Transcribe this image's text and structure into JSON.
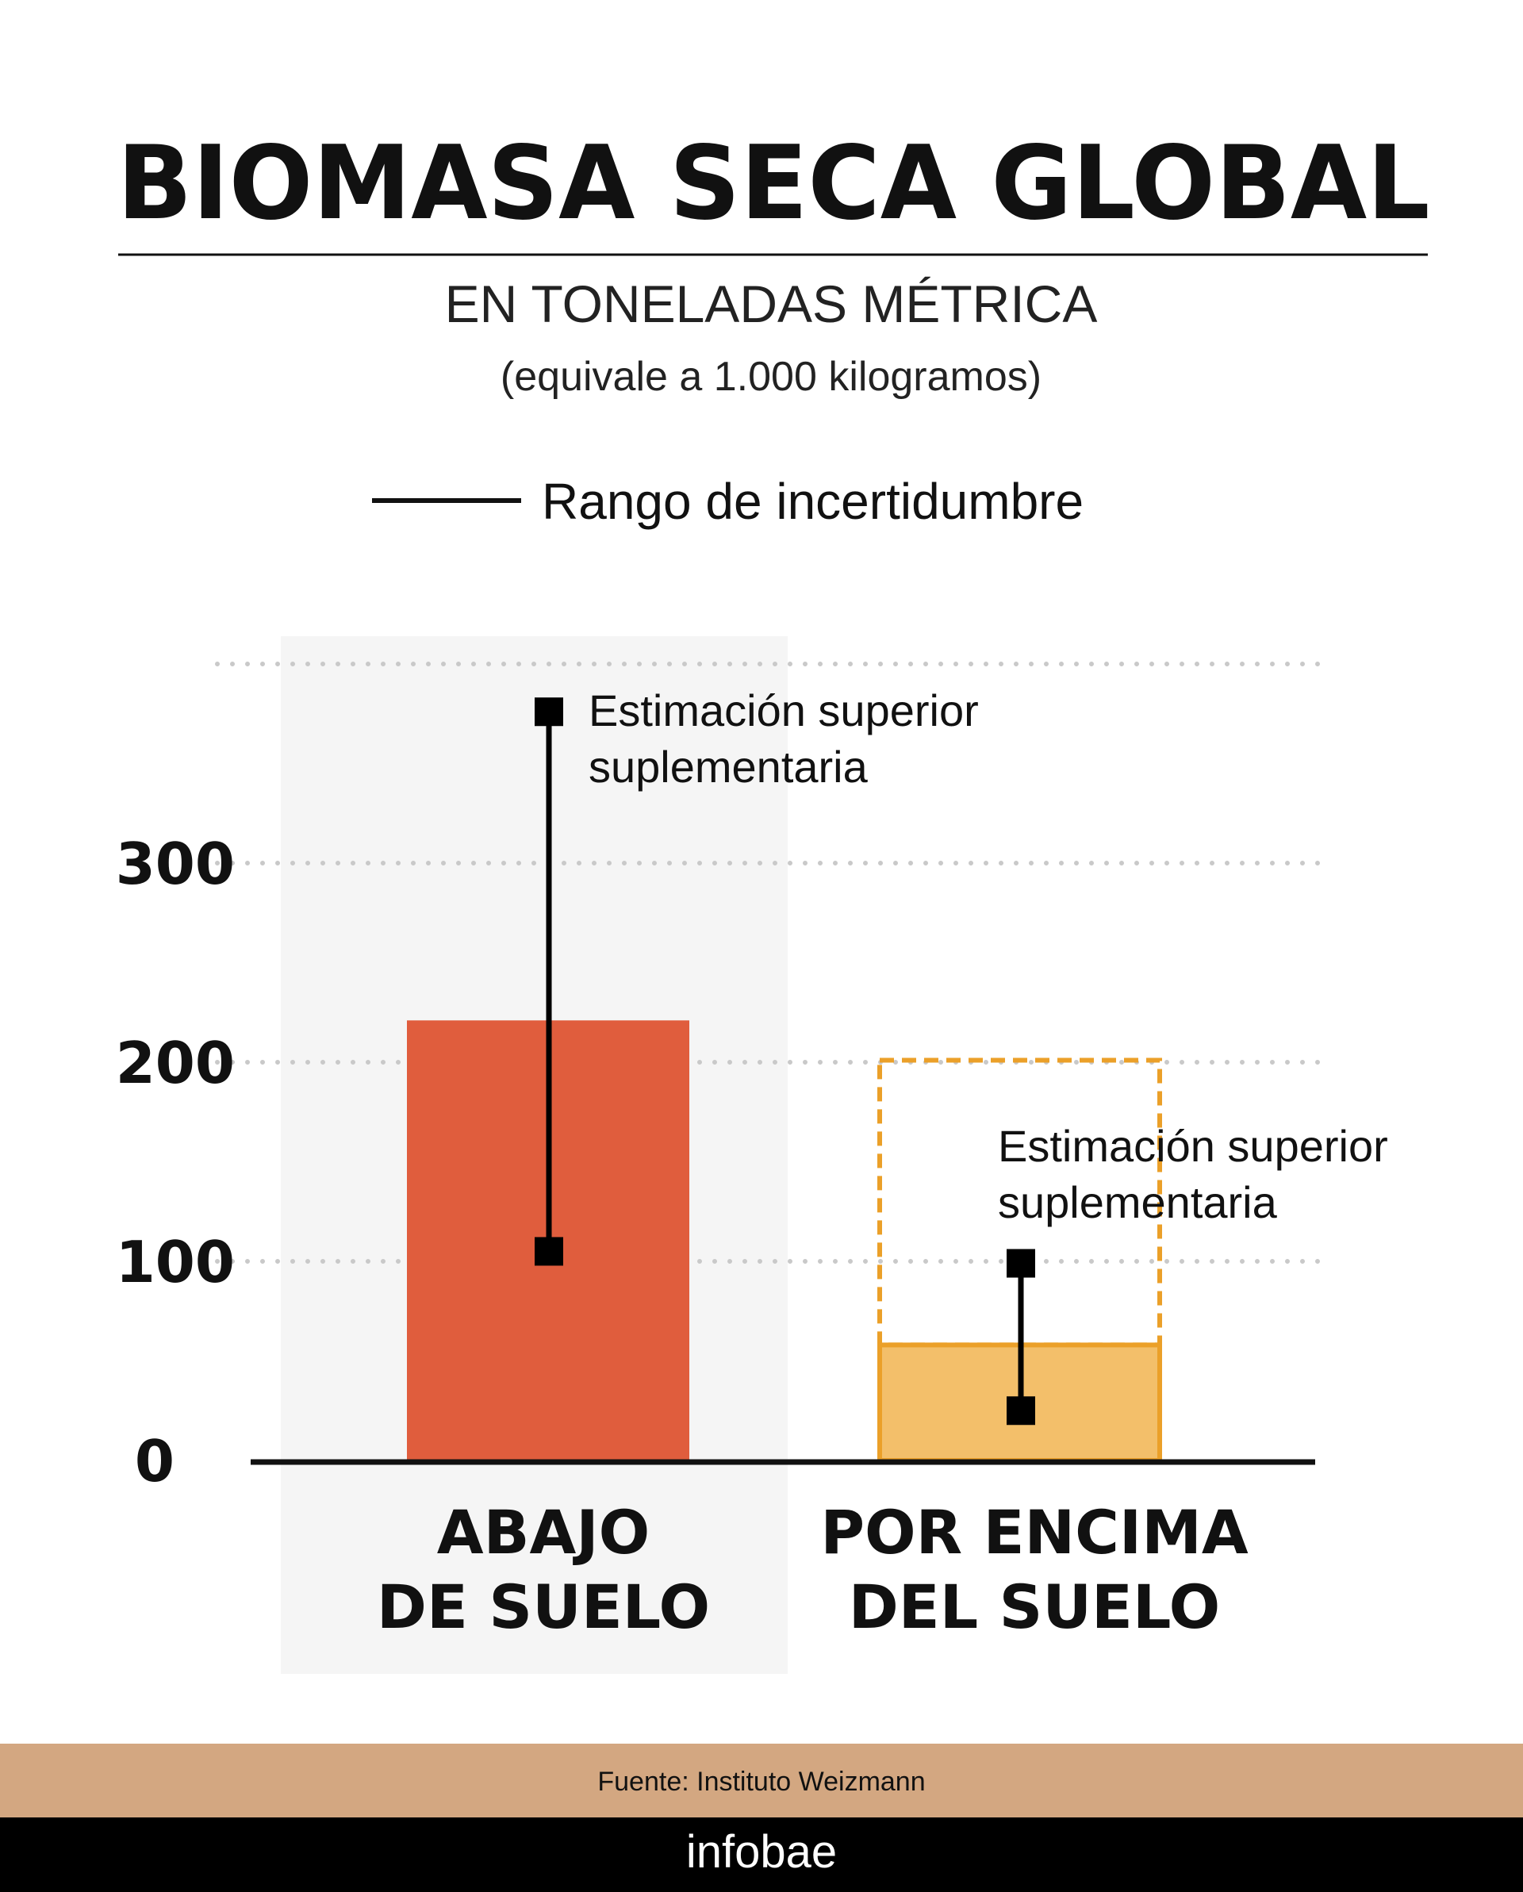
{
  "header": {
    "title": "BIOMASA SECA GLOBAL",
    "subtitle": "EN TONELADAS MÉTRICA",
    "note": "(equivale a 1.000 kilogramos)"
  },
  "legend": {
    "label": "Rango de incertidumbre"
  },
  "chart_data": {
    "type": "bar",
    "title": "BIOMASA SECA GLOBAL",
    "subtitle": "EN TONELADAS MÉTRICA",
    "xlabel": "",
    "ylabel": "",
    "ylim": [
      0,
      400
    ],
    "yticks": [
      0,
      100,
      200,
      300
    ],
    "ytick_labels": [
      "0",
      "100",
      "200",
      "300"
    ],
    "grid": true,
    "legend_placement": "top",
    "categories": [
      {
        "lines": [
          "ABAJO",
          "DE SUELO"
        ]
      },
      {
        "lines": [
          "POR ENCIMA",
          "DEL SUELO"
        ]
      }
    ],
    "values": [
      221,
      58
    ],
    "supplementary_upper": [
      null,
      201
    ],
    "error_ranges": [
      [
        105,
        376
      ],
      [
        25,
        99
      ]
    ],
    "annotations": [
      {
        "category": 0,
        "lines": [
          "Estimación superior",
          "suplementaria"
        ]
      },
      {
        "category": 1,
        "lines": [
          "Estimación superior",
          "suplementaria"
        ]
      }
    ],
    "colors": {
      "bar_below": "#e05d3d",
      "bar_above": "#f3bf6a",
      "bar_above_stroke": "#eba029",
      "highlight_bg": "#f5f5f5",
      "grid": "#c9c9c9"
    }
  },
  "footer": {
    "source": "Fuente: Instituto Weizmann",
    "brand": "infobae",
    "source_bg": "#d3a781",
    "brand_bg": "#000000"
  }
}
